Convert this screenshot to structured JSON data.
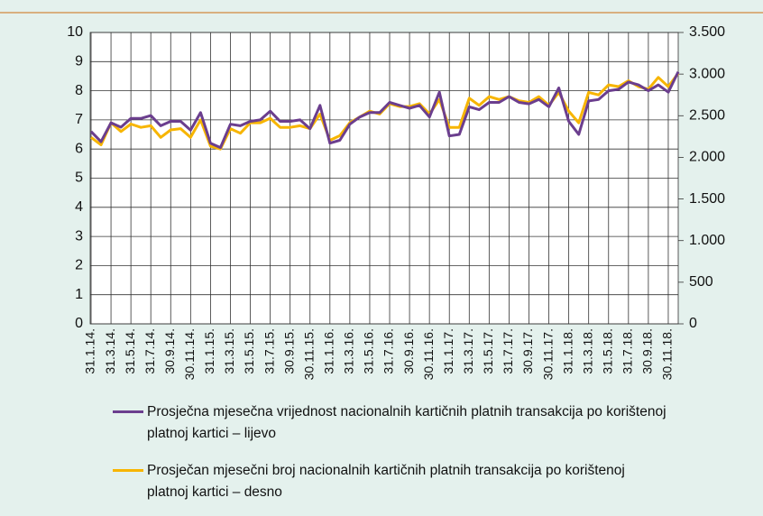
{
  "chart_data": {
    "type": "line",
    "categories": [
      "31.1.14.",
      null,
      "31.3.14.",
      null,
      "31.5.14.",
      null,
      "31.7.14.",
      null,
      "30.9.14.",
      null,
      "30.11.14.",
      null,
      "31.1.15.",
      null,
      "31.3.15.",
      null,
      "31.5.15.",
      null,
      "31.7.15.",
      null,
      "30.9.15.",
      null,
      "30.11.15.",
      null,
      "31.1.16.",
      null,
      "31.3.16.",
      null,
      "31.5.16.",
      null,
      "31.7.16.",
      null,
      "30.9.16.",
      null,
      "30.11.16.",
      null,
      "31.1.17.",
      null,
      "31.3.17.",
      null,
      "31.5.17.",
      null,
      "31.7.17.",
      null,
      "30.9.17.",
      null,
      "30.11.17.",
      null,
      "31.1.18.",
      null,
      "31.3.18.",
      null,
      "31.5.18.",
      null,
      "31.7.18.",
      null,
      "30.9.18.",
      null,
      "30.11.18.",
      null
    ],
    "series": [
      {
        "name": "Prosječna mjesečna vrijednost nacionalnih kartičnih platnih transakcija po korištenoj platnoj kartici – lijevo",
        "color": "#6b3e8e",
        "axis": "y",
        "values": [
          6.6,
          6.25,
          6.9,
          6.75,
          7.05,
          7.05,
          7.15,
          6.8,
          6.95,
          6.95,
          6.65,
          7.25,
          6.2,
          6.05,
          6.85,
          6.8,
          6.95,
          7.0,
          7.3,
          6.95,
          6.95,
          7.0,
          6.7,
          7.5,
          6.2,
          6.3,
          6.85,
          7.1,
          7.25,
          7.25,
          7.6,
          7.5,
          7.4,
          7.5,
          7.1,
          7.95,
          6.45,
          6.5,
          7.45,
          7.35,
          7.6,
          7.6,
          7.8,
          7.6,
          7.55,
          7.7,
          7.45,
          8.1,
          6.95,
          6.5,
          7.65,
          7.7,
          8.0,
          8.05,
          8.3,
          8.2,
          8.0,
          8.2,
          7.95,
          8.65
        ]
      },
      {
        "name": "Prosječan mjesečni broj nacionalnih kartičnih platnih transakcija po korištenoj platnoj kartici – desno",
        "color": "#f7b500",
        "axis": "y2",
        "values": [
          2240,
          2150,
          2415,
          2310,
          2400,
          2360,
          2380,
          2240,
          2330,
          2345,
          2240,
          2450,
          2135,
          2100,
          2345,
          2290,
          2415,
          2415,
          2470,
          2360,
          2360,
          2380,
          2345,
          2520,
          2205,
          2260,
          2415,
          2485,
          2555,
          2520,
          2645,
          2610,
          2610,
          2645,
          2520,
          2695,
          2360,
          2360,
          2710,
          2625,
          2730,
          2695,
          2730,
          2680,
          2660,
          2730,
          2625,
          2780,
          2555,
          2415,
          2780,
          2750,
          2870,
          2850,
          2920,
          2850,
          2820,
          2960,
          2850,
          3010
        ]
      }
    ],
    "ylim": [
      0,
      10
    ],
    "yticks": [
      0,
      1,
      2,
      3,
      4,
      5,
      6,
      7,
      8,
      9,
      10
    ],
    "y2lim": [
      0,
      3500
    ],
    "y2ticks": [
      0,
      500,
      {
        "value": 1000,
        "label": "1.000"
      },
      {
        "value": 1500,
        "label": "1.500"
      },
      {
        "value": 2000,
        "label": "2.000"
      },
      {
        "value": 2500,
        "label": "2.500"
      },
      {
        "value": 3000,
        "label": "3.000"
      },
      {
        "value": 3500,
        "label": "3.500"
      }
    ],
    "grid": true,
    "legend": "bottom"
  }
}
